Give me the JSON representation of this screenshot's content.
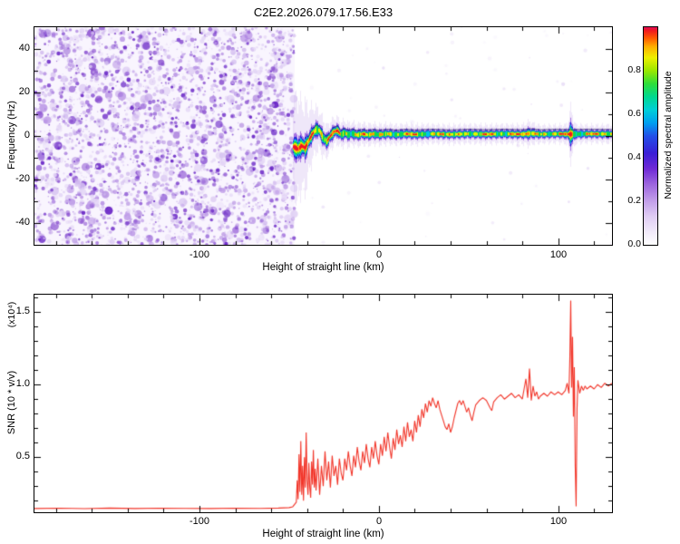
{
  "title": "C2E2.2026.079.17.56.E33",
  "colors": {
    "background": "#ffffff",
    "axis": "#000000",
    "snr_line": "#f2362a",
    "noise_purple": "#8a50d0"
  },
  "top_panel": {
    "ylabel": "Frequency (Hz)",
    "xlabel": "Height of straight line (km)",
    "y_tick_labels": [
      "40",
      "20",
      "0",
      "-20",
      "-40"
    ],
    "x_tick_labels": [
      "-100",
      "0",
      "100"
    ]
  },
  "colorbar": {
    "label": "Normalized spectral amplitude",
    "tick_labels": [
      "0.8",
      "0.6",
      "0.4",
      "0.2",
      "0.0"
    ],
    "range": [
      0.0,
      1.0
    ],
    "stops": [
      [
        0.0,
        "#ffffff"
      ],
      [
        0.05,
        "#f4eefb"
      ],
      [
        0.13,
        "#e0cdf4"
      ],
      [
        0.2,
        "#c3a0ea"
      ],
      [
        0.28,
        "#9c64de"
      ],
      [
        0.35,
        "#6f2ad6"
      ],
      [
        0.42,
        "#3b1fd6"
      ],
      [
        0.5,
        "#2350e8"
      ],
      [
        0.56,
        "#00a0f0"
      ],
      [
        0.62,
        "#00cfd8"
      ],
      [
        0.68,
        "#00d890"
      ],
      [
        0.74,
        "#2ede3a"
      ],
      [
        0.8,
        "#9ae800"
      ],
      [
        0.86,
        "#eef000"
      ],
      [
        0.91,
        "#ffb000"
      ],
      [
        0.95,
        "#ff5a00"
      ],
      [
        0.985,
        "#f01820"
      ],
      [
        1.0,
        "#e0105a"
      ]
    ]
  },
  "bottom_panel": {
    "ylabel": "SNR (10 * v/v)",
    "scale_note": "(x10⁴)",
    "xlabel": "Height of straight line (km)",
    "y_tick_labels": [
      "1.5",
      "1.0",
      "0.5"
    ],
    "x_tick_labels": [
      "-100",
      "0",
      "100"
    ]
  },
  "chart_data": [
    {
      "type": "heatmap",
      "title": "C2E2.2026.079.17.56.E33",
      "xlabel": "Height of straight line (km)",
      "ylabel": "Frequency (Hz)",
      "colorbar_label": "Normalized spectral amplitude",
      "colorbar_ticks": [
        0.0,
        0.2,
        0.4,
        0.6,
        0.8
      ],
      "x_range": [
        -192,
        130
      ],
      "y_range": [
        -50,
        50
      ],
      "x_ticks": [
        -100,
        0,
        100
      ],
      "y_ticks": [
        -40,
        -20,
        0,
        20,
        40
      ],
      "description": "Broadband purple noise speckle fills the panel for heights below about -47 km. From about -47 km to 130 km a narrow high-amplitude carrier band sits near 0 Hz (rainbow colors, red core), wiggling between roughly -6 and +3 Hz from -47 to -20 km, then staying near +1 Hz, with a broadened blob near +107 km.",
      "noise_region_x": [
        -192,
        -47
      ],
      "noise_palette": [
        "#e3d5f6",
        "#d4bff0",
        "#bf9de8",
        "#a678de",
        "#8a50d0",
        "#641ec4"
      ],
      "signal": {
        "start_km": -47.5,
        "centerline": [
          [
            -47.5,
            -5
          ],
          [
            -45,
            -6
          ],
          [
            -43,
            -4.5
          ],
          [
            -41,
            -5.5
          ],
          [
            -39,
            -2
          ],
          [
            -37,
            1
          ],
          [
            -35,
            3
          ],
          [
            -33,
            2.5
          ],
          [
            -31,
            -1
          ],
          [
            -29,
            -2.5
          ],
          [
            -27,
            0
          ],
          [
            -25,
            2
          ],
          [
            -23,
            2.5
          ],
          [
            -21,
            0.5
          ],
          [
            -19,
            1.5
          ],
          [
            -17,
            0.5
          ],
          [
            -15,
            1.2
          ],
          [
            -12,
            0.4
          ],
          [
            -9,
            1
          ],
          [
            -6,
            0.5
          ],
          [
            -3,
            1
          ],
          [
            0,
            0.6
          ],
          [
            5,
            1
          ],
          [
            10,
            0.6
          ],
          [
            15,
            1
          ],
          [
            20,
            0.7
          ],
          [
            30,
            1
          ],
          [
            40,
            0.7
          ],
          [
            50,
            1
          ],
          [
            60,
            0.8
          ],
          [
            70,
            1
          ],
          [
            80,
            0.8
          ],
          [
            85,
            1.2
          ],
          [
            90,
            0.8
          ],
          [
            100,
            1
          ],
          [
            107,
            0.8
          ],
          [
            115,
            1
          ],
          [
            130,
            0.9
          ]
        ],
        "width_profile": [
          [
            -47.5,
            2.4
          ],
          [
            -45,
            2.8
          ],
          [
            -43,
            2.2
          ],
          [
            -41,
            2.5
          ],
          [
            -39,
            1.9
          ],
          [
            -37,
            1.7
          ],
          [
            -35,
            1.6
          ],
          [
            -33,
            1.5
          ],
          [
            -31,
            1.6
          ],
          [
            -29,
            1.5
          ],
          [
            -27,
            1.4
          ],
          [
            -25,
            1.35
          ],
          [
            -23,
            1.3
          ],
          [
            -21,
            1.25
          ],
          [
            -19,
            1.2
          ],
          [
            -17,
            1.15
          ],
          [
            -15,
            1.1
          ],
          [
            -12,
            1.1
          ],
          [
            -9,
            1.05
          ],
          [
            -6,
            1.05
          ],
          [
            -3,
            1.0
          ],
          [
            0,
            1.0
          ],
          [
            10,
            0.95
          ],
          [
            20,
            0.95
          ],
          [
            30,
            0.9
          ],
          [
            40,
            0.9
          ],
          [
            50,
            0.9
          ],
          [
            60,
            0.9
          ],
          [
            70,
            0.9
          ],
          [
            80,
            0.9
          ],
          [
            84,
            1.2
          ],
          [
            86,
            1.0
          ],
          [
            90,
            0.85
          ],
          [
            100,
            0.85
          ],
          [
            105,
            0.95
          ],
          [
            106,
            1.6
          ],
          [
            107,
            2.6
          ],
          [
            108,
            2.0
          ],
          [
            109,
            1.2
          ],
          [
            110,
            0.9
          ],
          [
            115,
            0.85
          ],
          [
            122,
            0.85
          ],
          [
            130,
            0.9
          ]
        ],
        "intensity_boost": [
          [
            -47.5,
            0.35
          ],
          [
            -44,
            0.4
          ],
          [
            -40,
            0.3
          ],
          [
            -35,
            0.2
          ],
          [
            -30,
            0.15
          ],
          [
            -25,
            0.1
          ],
          [
            -20,
            0.05
          ],
          [
            0,
            0
          ],
          [
            60,
            0
          ],
          [
            80,
            0.1
          ],
          [
            85,
            0.15
          ],
          [
            90,
            0
          ],
          [
            104,
            0.05
          ],
          [
            106,
            0.3
          ],
          [
            107,
            0.5
          ],
          [
            108,
            0.3
          ],
          [
            110,
            0
          ],
          [
            130,
            0.05
          ]
        ],
        "layers": [
          {
            "name": "haze",
            "halfwidth_hz": 4.5,
            "color": "#cdb6ee",
            "alpha": 0.33,
            "threshold": -9
          },
          {
            "name": "purple",
            "halfwidth_hz": 2.3,
            "color": "#9a5fe0",
            "alpha": 0.85,
            "threshold": -9
          },
          {
            "name": "blue",
            "halfwidth_hz": 1.7,
            "color": "#2a2ad8",
            "alpha": 1,
            "threshold": -9
          },
          {
            "name": "cyan",
            "halfwidth_hz": 1.3,
            "color": "#00c4e8",
            "alpha": 1,
            "threshold": 0.1
          },
          {
            "name": "green",
            "halfwidth_hz": 1.0,
            "color": "#10d84e",
            "alpha": 1,
            "threshold": 0.3
          },
          {
            "name": "yellow",
            "halfwidth_hz": 0.72,
            "color": "#eef000",
            "alpha": 1,
            "threshold": 0.55
          },
          {
            "name": "orange",
            "halfwidth_hz": 0.5,
            "color": "#ff9400",
            "alpha": 1,
            "threshold": 0.72
          },
          {
            "name": "red",
            "halfwidth_hz": 0.34,
            "color": "#ee1228",
            "alpha": 1,
            "threshold": 0.85
          }
        ]
      }
    },
    {
      "type": "line",
      "series_name": "SNR",
      "color": "#f2362a",
      "xlabel": "Height of straight line (km)",
      "ylabel": "SNR (10 * v/v)",
      "scale_note": "(x10⁴)",
      "x_range": [
        -192,
        130
      ],
      "y_range": [
        0.12,
        1.62
      ],
      "x_ticks": [
        -100,
        0,
        100
      ],
      "y_ticks": [
        0.5,
        1.0,
        1.5
      ],
      "points": [
        [
          -192,
          0.146
        ],
        [
          -178,
          0.148
        ],
        [
          -164,
          0.145
        ],
        [
          -150,
          0.149
        ],
        [
          -136,
          0.146
        ],
        [
          -122,
          0.148
        ],
        [
          -108,
          0.147
        ],
        [
          -94,
          0.146
        ],
        [
          -80,
          0.148
        ],
        [
          -66,
          0.147
        ],
        [
          -56,
          0.149
        ],
        [
          -50,
          0.152
        ],
        [
          -48,
          0.158
        ],
        [
          -46,
          0.19
        ],
        [
          -45.5,
          0.34
        ],
        [
          -45,
          0.21
        ],
        [
          -44.5,
          0.52
        ],
        [
          -44,
          0.26
        ],
        [
          -43.5,
          0.61
        ],
        [
          -43,
          0.24
        ],
        [
          -42.5,
          0.44
        ],
        [
          -42,
          0.2
        ],
        [
          -41.5,
          0.5
        ],
        [
          -41,
          0.29
        ],
        [
          -40.5,
          0.67
        ],
        [
          -40,
          0.34
        ],
        [
          -39.5,
          0.24
        ],
        [
          -39,
          0.46
        ],
        [
          -38.5,
          0.29
        ],
        [
          -38,
          0.22
        ],
        [
          -37.5,
          0.47
        ],
        [
          -37,
          0.31
        ],
        [
          -36.5,
          0.55
        ],
        [
          -36,
          0.29
        ],
        [
          -35.5,
          0.42
        ],
        [
          -35,
          0.27
        ],
        [
          -34,
          0.49
        ],
        [
          -33,
          0.24
        ],
        [
          -32,
          0.44
        ],
        [
          -31,
          0.3
        ],
        [
          -30,
          0.54
        ],
        [
          -29,
          0.34
        ],
        [
          -28,
          0.47
        ],
        [
          -27,
          0.29
        ],
        [
          -26,
          0.51
        ],
        [
          -25,
          0.37
        ],
        [
          -24,
          0.44
        ],
        [
          -23,
          0.31
        ],
        [
          -22,
          0.49
        ],
        [
          -21,
          0.39
        ],
        [
          -20,
          0.34
        ],
        [
          -19,
          0.49
        ],
        [
          -18,
          0.41
        ],
        [
          -17,
          0.54
        ],
        [
          -16,
          0.44
        ],
        [
          -15,
          0.37
        ],
        [
          -14,
          0.51
        ],
        [
          -13,
          0.43
        ],
        [
          -12,
          0.57
        ],
        [
          -11,
          0.47
        ],
        [
          -10,
          0.41
        ],
        [
          -9,
          0.54
        ],
        [
          -8,
          0.46
        ],
        [
          -7,
          0.59
        ],
        [
          -6,
          0.49
        ],
        [
          -5,
          0.43
        ],
        [
          -4,
          0.57
        ],
        [
          -3,
          0.49
        ],
        [
          -2,
          0.61
        ],
        [
          -1,
          0.51
        ],
        [
          0,
          0.45
        ],
        [
          1,
          0.59
        ],
        [
          2,
          0.51
        ],
        [
          3,
          0.64
        ],
        [
          4,
          0.54
        ],
        [
          5,
          0.67
        ],
        [
          6,
          0.57
        ],
        [
          7,
          0.49
        ],
        [
          8,
          0.63
        ],
        [
          9,
          0.55
        ],
        [
          10,
          0.69
        ],
        [
          11,
          0.59
        ],
        [
          12,
          0.65
        ],
        [
          13,
          0.57
        ],
        [
          14,
          0.71
        ],
        [
          15,
          0.61
        ],
        [
          16,
          0.74
        ],
        [
          17,
          0.64
        ],
        [
          18,
          0.69
        ],
        [
          19,
          0.61
        ],
        [
          20,
          0.75
        ],
        [
          21,
          0.67
        ],
        [
          22,
          0.79
        ],
        [
          23,
          0.71
        ],
        [
          24,
          0.83
        ],
        [
          25,
          0.77
        ],
        [
          26,
          0.87
        ],
        [
          27,
          0.81
        ],
        [
          28,
          0.89
        ],
        [
          29,
          0.85
        ],
        [
          30,
          0.91
        ],
        [
          31,
          0.87
        ],
        [
          32,
          0.84
        ],
        [
          33,
          0.89
        ],
        [
          34,
          0.83
        ],
        [
          35,
          0.79
        ],
        [
          36,
          0.75
        ],
        [
          37,
          0.71
        ],
        [
          38,
          0.69
        ],
        [
          39,
          0.73
        ],
        [
          40,
          0.67
        ],
        [
          41,
          0.71
        ],
        [
          42,
          0.77
        ],
        [
          43,
          0.82
        ],
        [
          44,
          0.87
        ],
        [
          45,
          0.89
        ],
        [
          46,
          0.86
        ],
        [
          47,
          0.89
        ],
        [
          48,
          0.85
        ],
        [
          49,
          0.81
        ],
        [
          50,
          0.84
        ],
        [
          51,
          0.79
        ],
        [
          52,
          0.75
        ],
        [
          53,
          0.81
        ],
        [
          54,
          0.86
        ],
        [
          56,
          0.89
        ],
        [
          58,
          0.91
        ],
        [
          60,
          0.89
        ],
        [
          62,
          0.84
        ],
        [
          63,
          0.82
        ],
        [
          64,
          0.88
        ],
        [
          66,
          0.91
        ],
        [
          68,
          0.93
        ],
        [
          70,
          0.9
        ],
        [
          72,
          0.92
        ],
        [
          74,
          0.94
        ],
        [
          76,
          0.91
        ],
        [
          78,
          0.93
        ],
        [
          80,
          0.9
        ],
        [
          81,
          0.97
        ],
        [
          82,
          1.04
        ],
        [
          83,
          0.91
        ],
        [
          84,
          1.11
        ],
        [
          85,
          0.89
        ],
        [
          86,
          0.99
        ],
        [
          87,
          0.92
        ],
        [
          88,
          0.95
        ],
        [
          89,
          0.9
        ],
        [
          90,
          0.92
        ],
        [
          92,
          0.94
        ],
        [
          94,
          0.92
        ],
        [
          96,
          0.95
        ],
        [
          98,
          0.93
        ],
        [
          100,
          0.95
        ],
        [
          102,
          0.93
        ],
        [
          104,
          0.96
        ],
        [
          105,
          1.01
        ],
        [
          106,
          0.94
        ],
        [
          106.5,
          1.18
        ],
        [
          107,
          1.58
        ],
        [
          107.5,
          0.98
        ],
        [
          108,
          1.33
        ],
        [
          108.5,
          0.78
        ],
        [
          109,
          1.12
        ],
        [
          109.5,
          0.44
        ],
        [
          110,
          0.16
        ],
        [
          110.5,
          0.83
        ],
        [
          111,
          1.03
        ],
        [
          112,
          0.94
        ],
        [
          113,
          0.99
        ],
        [
          114,
          0.96
        ],
        [
          115,
          0.99
        ],
        [
          116,
          0.97
        ],
        [
          118,
          0.99
        ],
        [
          120,
          0.97
        ],
        [
          122,
          1.0
        ],
        [
          124,
          0.98
        ],
        [
          126,
          1.01
        ],
        [
          128,
          0.99
        ],
        [
          130,
          1.01
        ]
      ]
    }
  ]
}
